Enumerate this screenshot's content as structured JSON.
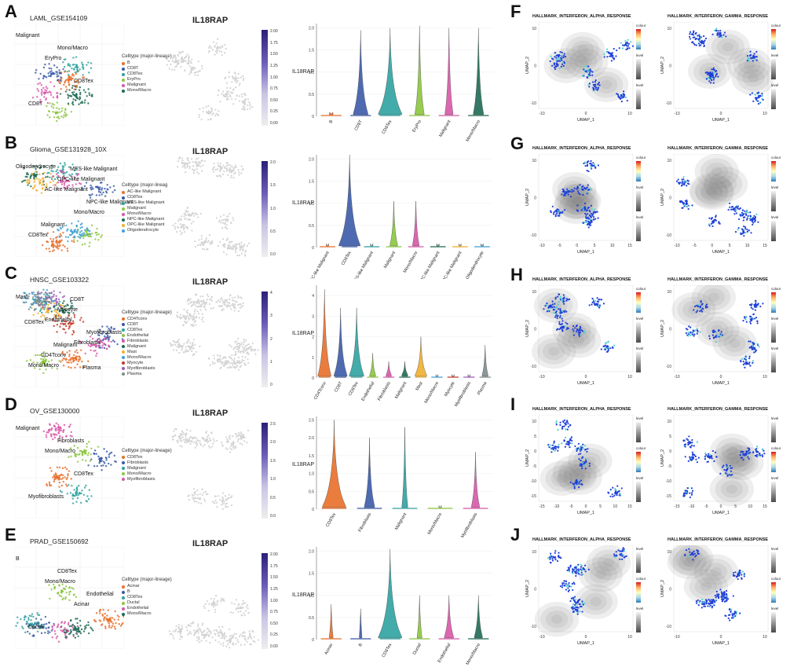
{
  "panels": [
    {
      "letter": "A",
      "dataset": "LAML_GSE154109",
      "gene": "IL18RAP",
      "legend_title": "Celltype (major-lineage)",
      "legend": [
        {
          "name": "B",
          "color": "#e8702a"
        },
        {
          "name": "CD8T",
          "color": "#3b5aa8"
        },
        {
          "name": "CD8Tex",
          "color": "#2fa2a0"
        },
        {
          "name": "EryPro",
          "color": "#8cc63f"
        },
        {
          "name": "Malignant",
          "color": "#d957a8"
        },
        {
          "name": "Mono/Macro",
          "color": "#1f6b55"
        }
      ],
      "cluster_labels": [
        "Malignant",
        "EryPro",
        "CD8Tex",
        "CD8T",
        "Mono/Macro"
      ],
      "cbar_ticks": [
        "2.00",
        "1.75",
        "1.50",
        "1.25",
        "1.00",
        "0.75",
        "0.50",
        "0.25",
        "0.00"
      ]
    },
    {
      "letter": "B",
      "dataset": "Glioma_GSE131928_10X",
      "gene": "IL18RAP",
      "legend_title": "Celltype (major-lineag",
      "legend": [
        {
          "name": "AC-like Malignant",
          "color": "#e8702a"
        },
        {
          "name": "CD8Tex",
          "color": "#3b5aa8"
        },
        {
          "name": "MES-like Malignant",
          "color": "#2fa2a0"
        },
        {
          "name": "Malignant",
          "color": "#8cc63f"
        },
        {
          "name": "Mono/Macro",
          "color": "#d957a8"
        },
        {
          "name": "NPC-like Malignant",
          "color": "#1f6b55"
        },
        {
          "name": "OPC-like Malignant",
          "color": "#f0b030"
        },
        {
          "name": "Oligodendrocyte",
          "color": "#3da0d8"
        }
      ],
      "cluster_labels": [
        "Oligodendrocyte",
        "AC-like Malignant",
        "Mono/Macro",
        "CD8Tex",
        "OPC-like Malignant",
        "NPC-like Malignant",
        "Malignant",
        "MES-like Malignant"
      ],
      "cbar_ticks": [
        "2.0",
        "1.5",
        "1.0",
        "0.5",
        "0.0"
      ]
    },
    {
      "letter": "C",
      "dataset": "HNSC_GSE103322",
      "gene": "IL18RAP",
      "legend_title": "Celltype (major-lineage)",
      "legend": [
        {
          "name": "CD4Tconv",
          "color": "#e8702a"
        },
        {
          "name": "CD8T",
          "color": "#3b5aa8"
        },
        {
          "name": "CD8Tex",
          "color": "#2fa2a0"
        },
        {
          "name": "Endothelial",
          "color": "#8cc63f"
        },
        {
          "name": "Fibroblasts",
          "color": "#d957a8"
        },
        {
          "name": "Malignant",
          "color": "#1f6b55"
        },
        {
          "name": "Mast",
          "color": "#f0b030"
        },
        {
          "name": "Mono/Macro",
          "color": "#3da0d8"
        },
        {
          "name": "Myocyte",
          "color": "#c0392b"
        },
        {
          "name": "Myofibroblasts",
          "color": "#9b59b6"
        },
        {
          "name": "Plasma",
          "color": "#7f8c8d"
        }
      ],
      "cluster_labels": [
        "Mast",
        "Endothelial",
        "Fibroblasts",
        "Mono/Macro",
        "Myocyte",
        "Myofibroblasts",
        "CD4Tconv",
        "CD8T",
        "CD8Tex",
        "Malignant",
        "Plasma"
      ],
      "cbar_ticks": [
        "4",
        "3",
        "2",
        "1",
        "0"
      ]
    },
    {
      "letter": "D",
      "dataset": "OV_GSE130000",
      "gene": "IL18RAP",
      "legend_title": "Celltype (major-lineage)",
      "legend": [
        {
          "name": "CD8Tex",
          "color": "#e8702a"
        },
        {
          "name": "Fibroblasts",
          "color": "#3b5aa8"
        },
        {
          "name": "Malignant",
          "color": "#2fa2a0"
        },
        {
          "name": "Mono/Macro",
          "color": "#8cc63f"
        },
        {
          "name": "Myofibroblasts",
          "color": "#d957a8"
        }
      ],
      "cluster_labels": [
        "Malignant",
        "Mono/Macro",
        "CD8Tex",
        "Myofibroblasts",
        "Fibroblasts"
      ],
      "cbar_ticks": [
        "2.5",
        "2.0",
        "1.5",
        "1.0",
        "0.5",
        "0.0"
      ]
    },
    {
      "letter": "E",
      "dataset": "PRAD_GSE150692",
      "gene": "IL18RAP",
      "legend_title": "Celltype (major-lineage)",
      "legend": [
        {
          "name": "Acinar",
          "color": "#e8702a"
        },
        {
          "name": "B",
          "color": "#3b5aa8"
        },
        {
          "name": "CD8Tex",
          "color": "#2fa2a0"
        },
        {
          "name": "Ductal",
          "color": "#8cc63f"
        },
        {
          "name": "Endothelial",
          "color": "#d957a8"
        },
        {
          "name": "Mono/Macro",
          "color": "#1f6b55"
        }
      ],
      "cluster_labels": [
        "B",
        "Mono/Macro",
        "Acinar",
        "Ductal",
        "CD8Tex",
        "Endothelial"
      ],
      "cbar_ticks": [
        "2.00",
        "1.75",
        "1.50",
        "1.25",
        "1.00",
        "0.75",
        "0.50",
        "0.25",
        "0.00"
      ]
    }
  ],
  "chart_data": [
    {
      "type": "violin",
      "panel": "A",
      "ylabel": "IL18RAP",
      "ylim": [
        0,
        2.1
      ],
      "yticks": [
        "0",
        "0.5",
        "1.0",
        "1.5",
        "2.0"
      ],
      "categories": [
        "B",
        "CD8T",
        "CD8Tex",
        "EryPro",
        "Malignant",
        "Mono/Macro"
      ],
      "values": [
        0.05,
        1.95,
        2.0,
        2.05,
        2.0,
        2.0
      ],
      "body": [
        0.1,
        0.6,
        1.0,
        0.35,
        0.3,
        0.4
      ],
      "colors": [
        "#e8702a",
        "#3b5aa8",
        "#2fa2a0",
        "#8cc63f",
        "#d957a8",
        "#1f6b55"
      ]
    },
    {
      "type": "violin",
      "panel": "B",
      "ylabel": "IL18RAP",
      "ylim": [
        0,
        2.1
      ],
      "yticks": [
        "0",
        "0.5",
        "1.0",
        "1.5",
        "2.0"
      ],
      "categories": [
        "AC-like Malignant",
        "CD8Tex",
        "MES-like Malignant",
        "Malignant",
        "Mono/Macro",
        "NPC-like Malignant",
        "OPC-like Malignant",
        "Oligodendrocyte"
      ],
      "values": [
        0.02,
        2.1,
        0.02,
        1.05,
        1.05,
        0.02,
        0.02,
        0.02
      ],
      "body": [
        0.05,
        1.0,
        0.05,
        0.3,
        0.25,
        0.05,
        0.05,
        0.05
      ],
      "colors": [
        "#e8702a",
        "#3b5aa8",
        "#2fa2a0",
        "#8cc63f",
        "#d957a8",
        "#1f6b55",
        "#f0b030",
        "#3da0d8"
      ]
    },
    {
      "type": "violin",
      "panel": "C",
      "ylabel": "IL18RAP",
      "ylim": [
        0,
        4.5
      ],
      "yticks": [
        "0",
        "1",
        "2",
        "3",
        "4"
      ],
      "categories": [
        "CD4Tconv",
        "CD8T",
        "CD8Tex",
        "Endothelial",
        "Fibroblasts",
        "Malignant",
        "Mast",
        "Mono/Macro",
        "Myocyte",
        "Myofibroblasts",
        "Plasma"
      ],
      "values": [
        4.3,
        3.4,
        3.4,
        1.2,
        0.8,
        0.8,
        2.0,
        0.02,
        0.02,
        0.02,
        1.6
      ],
      "body": [
        0.8,
        0.8,
        0.9,
        0.3,
        0.25,
        0.3,
        0.7,
        0.05,
        0.05,
        0.05,
        0.3
      ],
      "colors": [
        "#e8702a",
        "#3b5aa8",
        "#2fa2a0",
        "#8cc63f",
        "#d957a8",
        "#1f6b55",
        "#f0b030",
        "#3da0d8",
        "#c0392b",
        "#9b59b6",
        "#7f8c8d"
      ]
    },
    {
      "type": "violin",
      "panel": "D",
      "ylabel": "IL18RAP",
      "ylim": [
        0,
        2.6
      ],
      "yticks": [
        "0",
        "0.5",
        "1.0",
        "1.5",
        "2.0",
        "2.5"
      ],
      "categories": [
        "CD8Tex",
        "Fibroblasts",
        "Malignant",
        "Mono/Macro",
        "Myofibroblasts"
      ],
      "values": [
        2.5,
        2.0,
        2.3,
        0.02,
        1.6
      ],
      "body": [
        1.0,
        0.4,
        0.2,
        0.05,
        0.3
      ],
      "colors": [
        "#e8702a",
        "#3b5aa8",
        "#2fa2a0",
        "#8cc63f",
        "#d957a8"
      ]
    },
    {
      "type": "violin",
      "panel": "E",
      "ylabel": "IL18RAP",
      "ylim": [
        0,
        2.1
      ],
      "yticks": [
        "0",
        "0.5",
        "1.0",
        "1.5",
        "2.0"
      ],
      "categories": [
        "Acinar",
        "B",
        "CD8Tex",
        "Ductal",
        "Endothelial",
        "Mono/Macro"
      ],
      "values": [
        0.8,
        0.7,
        2.05,
        1.0,
        1.0,
        1.0
      ],
      "body": [
        0.1,
        0.05,
        1.0,
        0.15,
        0.35,
        0.3
      ],
      "colors": [
        "#e8702a",
        "#3b5aa8",
        "#2fa2a0",
        "#8cc63f",
        "#d957a8",
        "#1f6b55"
      ]
    }
  ],
  "hallmark_panels": [
    {
      "letter": "F",
      "left_title": "HALLMARK_INTERFERON_ALPHA_RESPONSE",
      "right_title": "HALLMARK_INTERFERON_GAMMA_RESPONSE",
      "xlabel": "UMAP_1",
      "ylabel": "UMAP_2",
      "xticks": [
        "-10",
        "0",
        "10"
      ],
      "yticks": [
        "10",
        "0",
        "-10"
      ],
      "legend_labels": [
        "colour",
        "level",
        "level"
      ]
    },
    {
      "letter": "G",
      "left_title": "HALLMARK_INTERFERON_ALPHA_RESPONSE",
      "right_title": "HALLMARK_INTERFERON_GAMMA_RESPONSE",
      "xlabel": "UMAP_1",
      "ylabel": "UMAP_2",
      "xticks": [
        "-10",
        "-5",
        "0",
        "5",
        "10",
        "15"
      ],
      "yticks": [
        "10",
        "0",
        "-10"
      ],
      "legend_labels": [
        "colour",
        "level",
        "level"
      ]
    },
    {
      "letter": "H",
      "left_title": "HALLMARK_INTERFERON_ALPHA_RESPONSE",
      "right_title": "HALLMARK_INTERFERON_GAMMA_RESPONSE",
      "xlabel": "UMAP_1",
      "ylabel": "UMAP_2",
      "xticks": [
        "-10",
        "0",
        "10"
      ],
      "yticks": [
        "10",
        "0",
        "-10"
      ],
      "legend_labels": [
        "colour",
        "level",
        "level"
      ]
    },
    {
      "letter": "I",
      "left_title": "HALLMARK_INTERFERON_ALPHA_RESPONSE",
      "right_title": "HALLMARK_INTERFERON_GAMMA_RESPONSE",
      "xlabel": "UMAP_1",
      "ylabel": "UMAP_2",
      "xticks": [
        "-15",
        "-10",
        "-5",
        "0",
        "5",
        "10",
        "15"
      ],
      "yticks": [
        "10",
        "5",
        "0",
        "-5",
        "-10",
        "-15"
      ],
      "legend_labels": [
        "level",
        "colour",
        "level"
      ]
    },
    {
      "letter": "J",
      "left_title": "HALLMARK_INTERFERON_ALPHA_RESPONSE",
      "right_title": "HALLMARK_INTERFERON_GAMMA_RESPONSE",
      "xlabel": "UMAP_1",
      "ylabel": "UMAP_2",
      "xticks": [
        "-10",
        "0",
        "10"
      ],
      "yticks": [
        "10",
        "0",
        "-10"
      ],
      "legend_labels": [
        "level",
        "colour",
        "level"
      ]
    }
  ]
}
